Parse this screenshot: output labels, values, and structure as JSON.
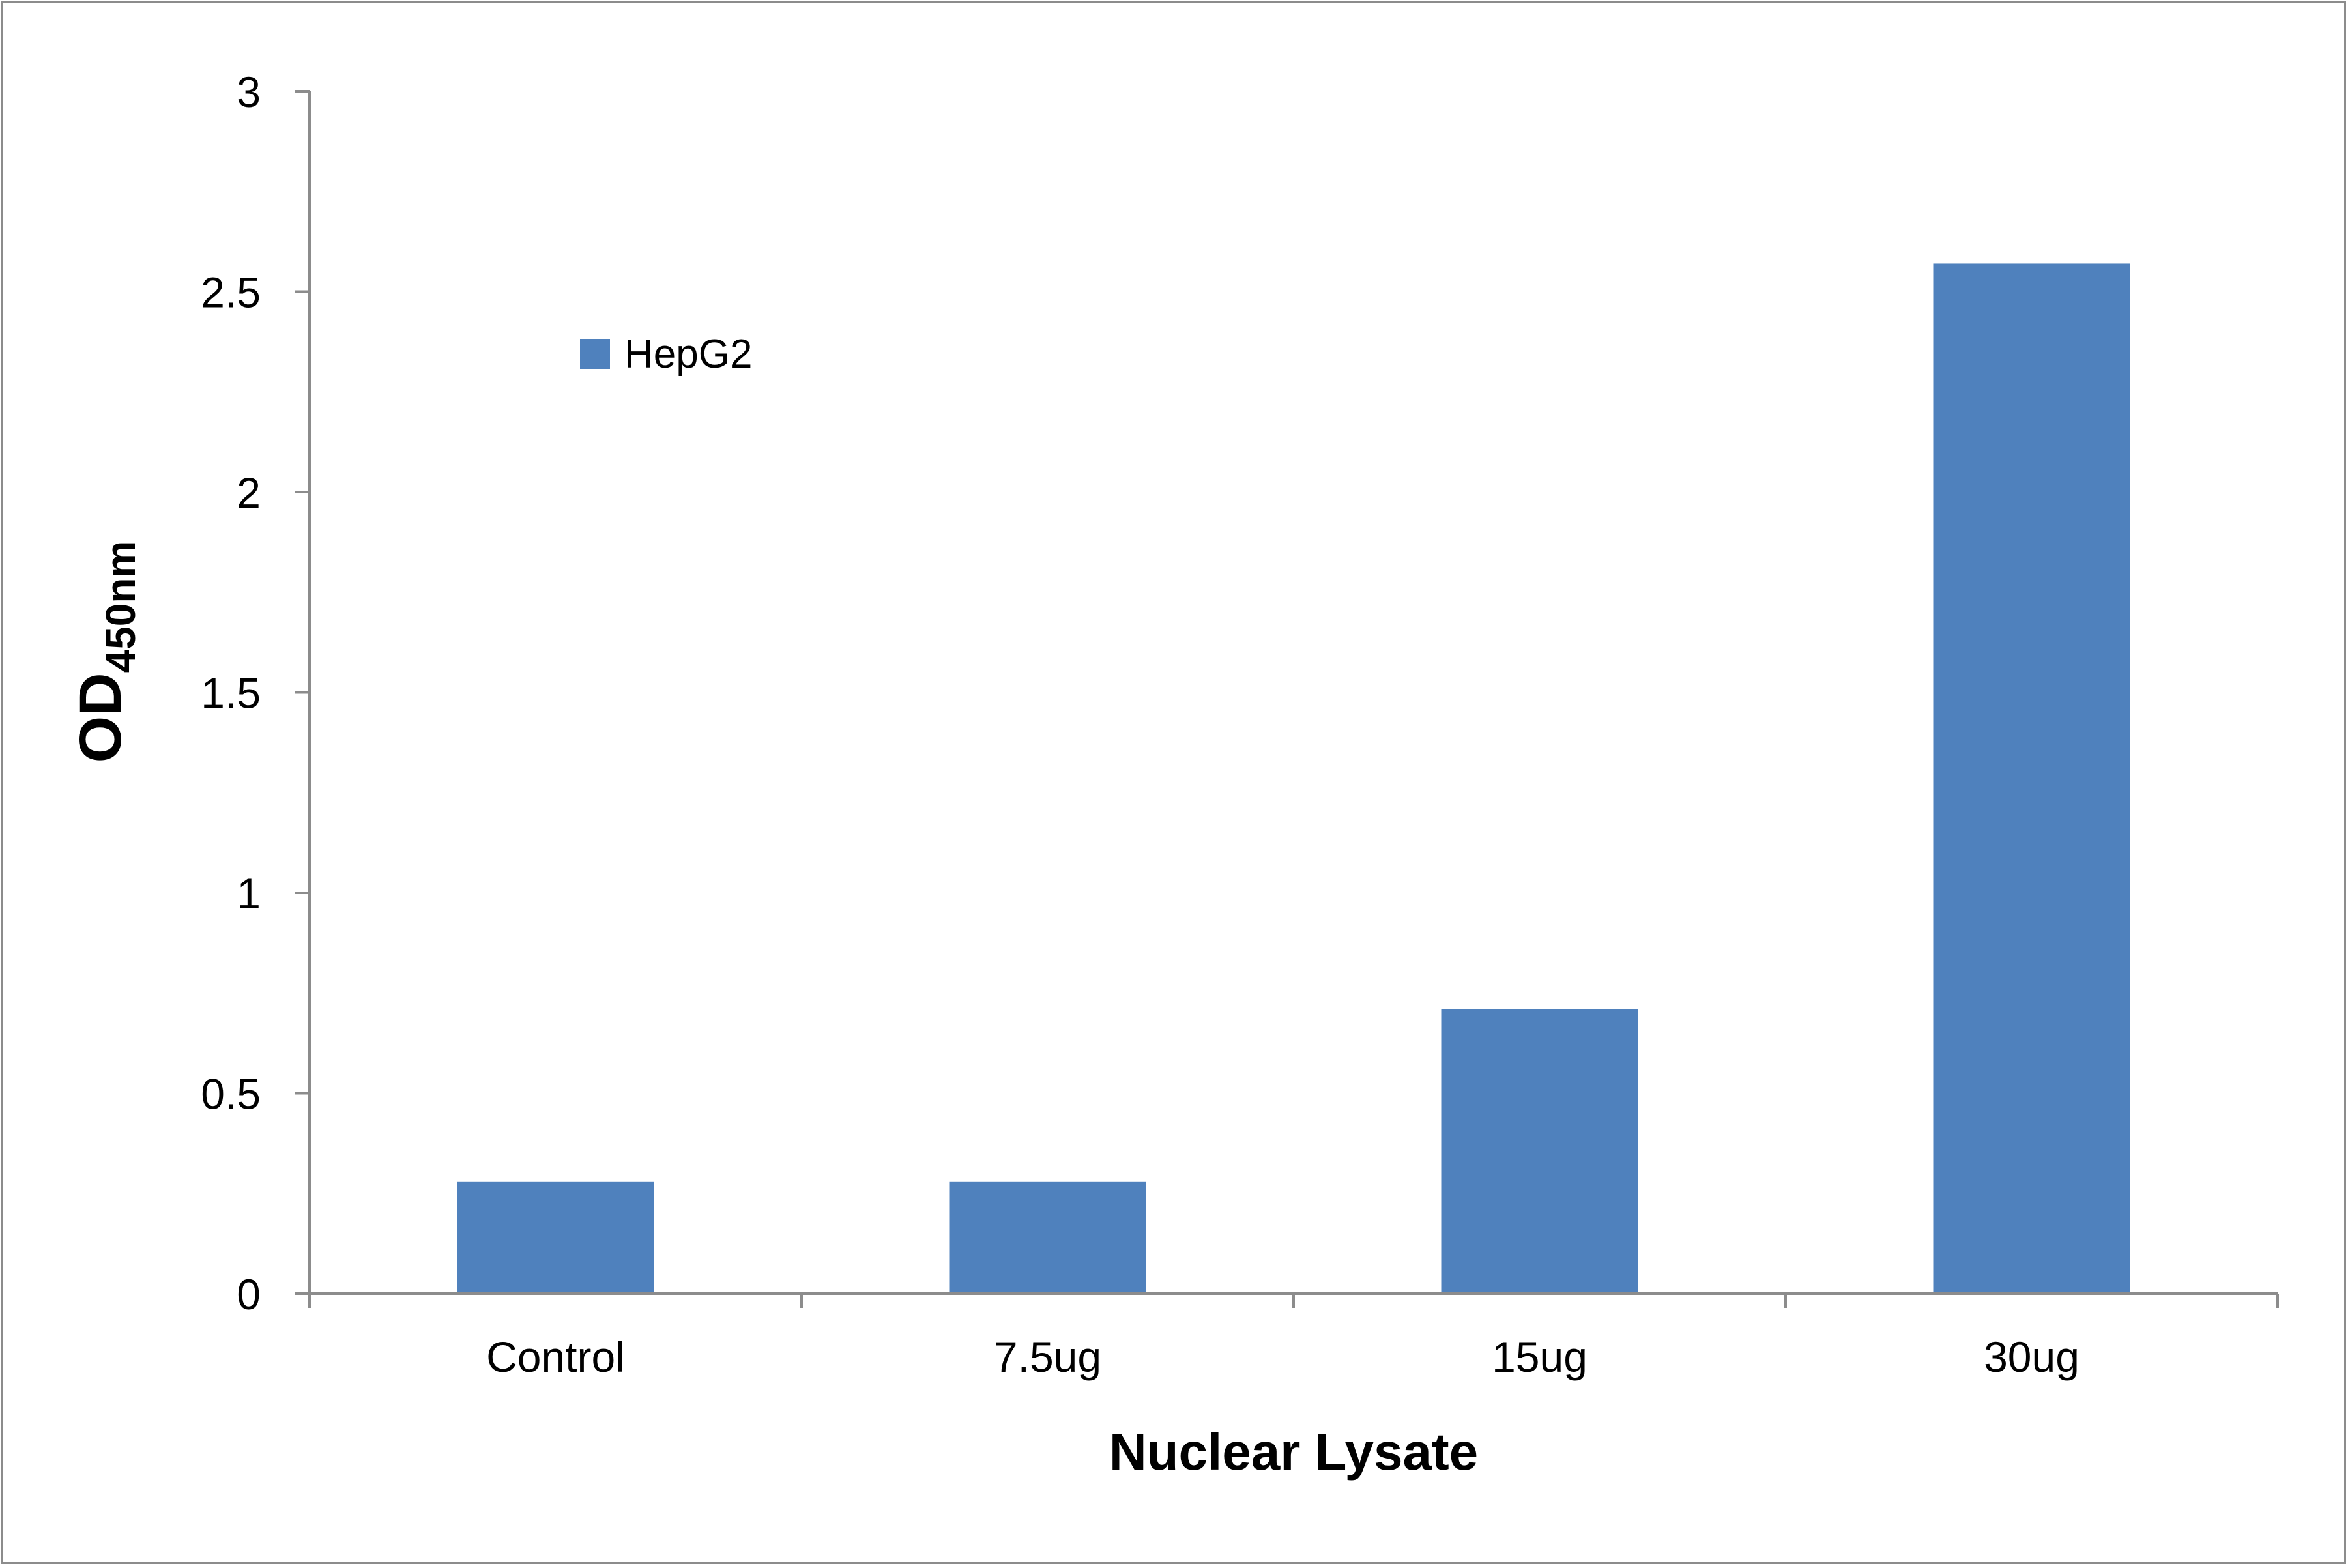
{
  "chart_data": {
    "type": "bar",
    "title": "",
    "categories": [
      "Control",
      "7.5ug",
      "15ug",
      "30ug"
    ],
    "series": [
      {
        "name": "HepG2",
        "values": [
          0.28,
          0.28,
          0.71,
          2.57
        ],
        "color": "#4f81bd"
      }
    ],
    "xlabel": "Nuclear Lysate",
    "ylabel": {
      "main": "OD",
      "subscript": "450nm"
    },
    "ylim": [
      0,
      3
    ],
    "yticks": [
      "0",
      "0.5",
      "1",
      "1.5",
      "2",
      "2.5",
      "3"
    ],
    "grid": false,
    "legend_position": "top-left",
    "axis_color": "#8c8c8c"
  }
}
